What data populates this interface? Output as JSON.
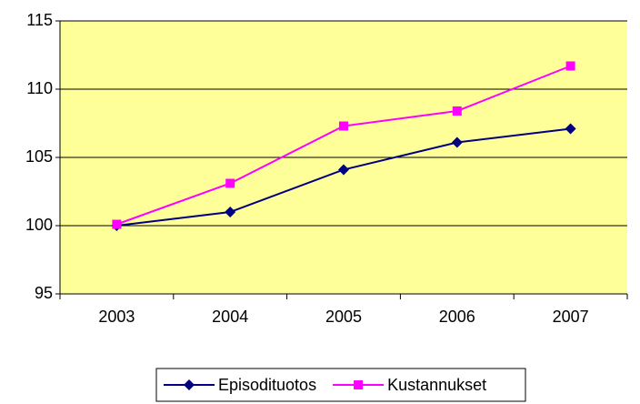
{
  "chart_data": {
    "type": "line",
    "categories": [
      "2003",
      "2004",
      "2005",
      "2006",
      "2007"
    ],
    "series": [
      {
        "name": "Episodituotos",
        "color": "#000080",
        "marker": "diamond",
        "values": [
          100,
          101.0,
          104.1,
          106.1,
          107.1
        ]
      },
      {
        "name": "Kustannukset",
        "color": "#ff00ff",
        "marker": "square",
        "values": [
          100.1,
          103.1,
          107.3,
          108.4,
          111.7
        ]
      }
    ],
    "ylim": [
      95,
      115
    ],
    "yticks": [
      95,
      100,
      105,
      110,
      115
    ],
    "grid": true,
    "legend": "bottom"
  }
}
